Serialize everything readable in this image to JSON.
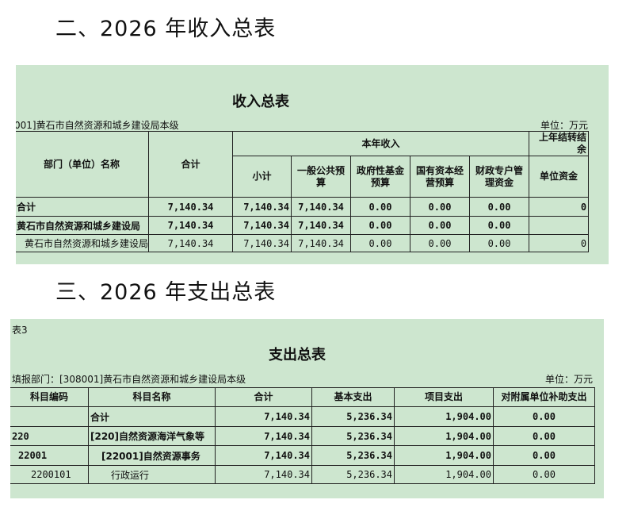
{
  "headings": {
    "income": "二、2026 年收入总表",
    "expense": "三、2026 年支出总表"
  },
  "income": {
    "title": "收入总表",
    "dept": "001]黄石市自然资源和城乡建设局本级",
    "unit": "单位：万元",
    "headers": {
      "name": "部门（单位）名称",
      "total": "合计",
      "current": "本年收入",
      "carry": "上年结转结余",
      "subtotal": "小计",
      "general": "一般公共预算",
      "fund": "政府性基金预算",
      "state": "国有资本经营预算",
      "special": "财政专户管理资金",
      "unitfund": "单位资金"
    },
    "rows": [
      [
        "合计",
        "7,140.34",
        "7,140.34",
        "7,140.34",
        "0.00",
        "0.00",
        "0.00",
        "0"
      ],
      [
        "黄石市自然资源和城乡建设局",
        "7,140.34",
        "7,140.34",
        "7,140.34",
        "0.00",
        "0.00",
        "0.00",
        ""
      ],
      [
        "黄石市自然资源和城乡建设局",
        "7,140.34",
        "7,140.34",
        "7,140.34",
        "0.00",
        "0.00",
        "0.00",
        "0"
      ]
    ]
  },
  "expense": {
    "table_no": "表3",
    "title": "支出总表",
    "dept": "填报部门：[308001]黄石市自然资源和城乡建设局本级",
    "unit": "单位：万元",
    "headers": [
      "科目编码",
      "科目名称",
      "合计",
      "基本支出",
      "项目支出",
      "对附属单位补助支出"
    ],
    "rows": [
      [
        "",
        "合计",
        "7,140.34",
        "5,236.34",
        "1,904.00",
        "0.00"
      ],
      [
        "220",
        "[220]自然资源海洋气象等",
        "7,140.34",
        "5,236.34",
        "1,904.00",
        "0.00"
      ],
      [
        "22001",
        "[22001]自然资源事务",
        "7,140.34",
        "5,236.34",
        "1,904.00",
        "0.00"
      ],
      [
        "2200101",
        "行政运行",
        "7,140.34",
        "5,236.34",
        "1,904.00",
        "0.00"
      ]
    ]
  }
}
